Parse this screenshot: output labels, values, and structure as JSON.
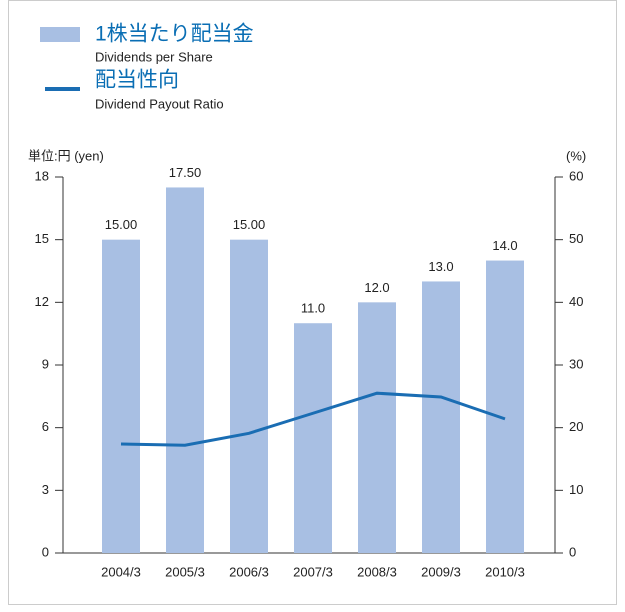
{
  "chart_data": {
    "type": "bar_line",
    "y_label": "単位:円 (yen)",
    "y2_label": "(%)",
    "categories": [
      "2004/3",
      "2005/3",
      "2006/3",
      "2007/3",
      "2008/3",
      "2009/3",
      "2010/3"
    ],
    "ylim": [
      0,
      18
    ],
    "yticks": [
      0,
      3,
      6,
      9,
      12,
      15,
      18
    ],
    "y2lim": [
      0,
      60
    ],
    "y2ticks": [
      0,
      10,
      20,
      30,
      40,
      50,
      60
    ],
    "series": [
      {
        "name": "1株当たり配当金",
        "name_en": "Dividends per Share",
        "type": "bar",
        "color": "#a8bfe3",
        "values": [
          15,
          17.5,
          15,
          11,
          12,
          13,
          14
        ],
        "value_labels": [
          "15.00",
          "17.50",
          "15.00",
          "11.0",
          "12.0",
          "13.0",
          "14.0"
        ]
      },
      {
        "name": "配当性向",
        "name_en": "Dividend Payout Ratio",
        "type": "line",
        "axis": "y2",
        "color": "#1a6db3",
        "values": [
          17.4,
          17.2,
          19.1,
          22.3,
          25.5,
          24.9,
          21.4
        ]
      }
    ]
  }
}
